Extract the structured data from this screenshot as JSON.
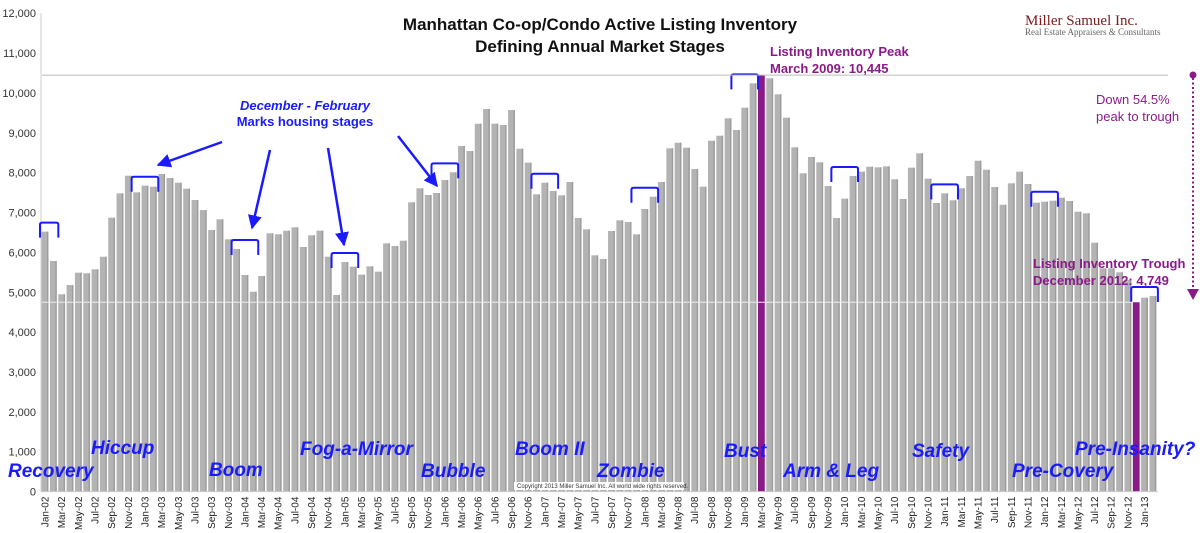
{
  "logo": {
    "name": "Miller Samuel Inc.",
    "tagline": "Real Estate Appraisers & Consultants"
  },
  "copyright": "Copyright 2013 Miller Samuel Inc. All world wide rights reserved.",
  "annotations": {
    "note_line1": "December - February",
    "note_line2": "Marks housing stages",
    "peak_line1": "Listing Inventory Peak",
    "peak_line2": "March 2009: 10,445",
    "trough_line1": "Listing Inventory Trough",
    "trough_line2": "December 2012: 4,749",
    "down_line1": "Down 54.5%",
    "down_line2": "peak to trough"
  },
  "stages": [
    "Recovery",
    "Hiccup",
    "Boom",
    "Fog-a-Mirror",
    "Bubble",
    "Boom II",
    "Zombie",
    "Bust",
    "Arm & Leg",
    "Safety",
    "Pre-Covery",
    "Pre-Insanity?"
  ],
  "colors": {
    "bar": "#b3b3b3",
    "highlight": "#8b1a89",
    "stage": "#1a1aff"
  },
  "chart_data": {
    "type": "bar",
    "title": "Manhattan Co-op/Condo Active Listing Inventory",
    "subtitle": "Defining Annual Market Stages",
    "xlabel": "",
    "ylabel": "",
    "ylim": [
      0,
      12000
    ],
    "yticks": [
      "0",
      "1,000",
      "2,000",
      "3,000",
      "4,000",
      "5,000",
      "6,000",
      "7,000",
      "8,000",
      "9,000",
      "10,000",
      "11,000",
      "12,000"
    ],
    "start_month": "Jan-02",
    "values": [
      6519,
      5783,
      4948,
      5181,
      5490,
      5475,
      5575,
      5891,
      6870,
      7481,
      7923,
      7506,
      7672,
      7647,
      7965,
      7865,
      7747,
      7597,
      7313,
      7062,
      6561,
      6829,
      6328,
      6085,
      5432,
      5014,
      5407,
      6478,
      6453,
      6544,
      6629,
      6135,
      6428,
      6544,
      5891,
      4931,
      5758,
      5641,
      5440,
      5650,
      5516,
      6227,
      6160,
      6293,
      7256,
      7607,
      7439,
      7489,
      7815,
      8008,
      8667,
      8542,
      9227,
      9596,
      9227,
      9194,
      9570,
      8600,
      8249,
      7456,
      7747,
      7539,
      7431,
      7765,
      6862,
      6578,
      5926,
      5834,
      6536,
      6804,
      6762,
      6453,
      7088,
      7396,
      7765,
      8610,
      8750,
      8625,
      8090,
      7647,
      8800,
      8926,
      9362,
      9069,
      9628,
      10240,
      10445,
      10366,
      9964,
      9378,
      8635,
      7983,
      8392,
      8259,
      7665,
      6862,
      7347,
      7915,
      8024,
      8149,
      8133,
      8158,
      7832,
      7339,
      8124,
      8485,
      7848,
      7238,
      7481,
      7306,
      7607,
      7915,
      8299,
      8073,
      7639,
      7196,
      7732,
      8024,
      7715,
      7246,
      7271,
      7296,
      7371,
      7288,
      7020,
      6980,
      6243,
      5600,
      5600,
      5500,
      5307,
      4749,
      4864,
      4905
    ],
    "peak": {
      "month": "Mar-09",
      "value": 10445
    },
    "trough": {
      "month": "Dec-12",
      "value": 4749
    },
    "brackets": [
      [
        "Jan-02",
        "Feb-02"
      ],
      [
        "Dec-02",
        "Feb-03"
      ],
      [
        "Dec-03",
        "Feb-04"
      ],
      [
        "Dec-04",
        "Feb-05"
      ],
      [
        "Dec-05",
        "Feb-06"
      ],
      [
        "Dec-06",
        "Feb-07"
      ],
      [
        "Dec-07",
        "Feb-08"
      ],
      [
        "Dec-08",
        "Feb-09"
      ],
      [
        "Dec-09",
        "Feb-10"
      ],
      [
        "Dec-10",
        "Feb-11"
      ],
      [
        "Dec-11",
        "Feb-12"
      ],
      [
        "Dec-12",
        "Feb-13"
      ]
    ]
  }
}
